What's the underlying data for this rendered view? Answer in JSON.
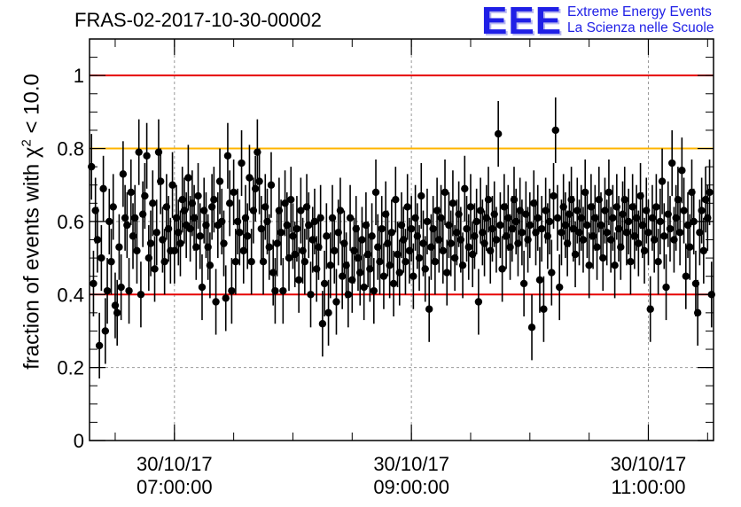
{
  "chart_data": {
    "type": "scatter",
    "title": "FRAS-02-2017-10-30-00002",
    "ylabel": "fraction of events with χ² < 10.0",
    "ylabel_parts": {
      "prefix": "fraction of events with ",
      "symbol": "χ",
      "exponent": "2",
      "suffix": " < 10.0"
    },
    "xlabel": "",
    "ylim": [
      0,
      1.1
    ],
    "xlim": [
      "30/10/17 06:17:00",
      "30/10/17 11:33:00"
    ],
    "x_unit": "date-time (30/10/17)",
    "y_ticks": [
      "0",
      "0.2",
      "0.4",
      "0.6",
      "0.8",
      "1"
    ],
    "x_ticks": [
      {
        "x": "30/10/17 07:00:00",
        "line1": "30/10/17",
        "line2": "07:00:00"
      },
      {
        "x": "30/10/17 09:00:00",
        "line1": "30/10/17",
        "line2": "09:00:00"
      },
      {
        "x": "30/10/17 11:00:00",
        "line1": "30/10/17",
        "line2": "11:00:00"
      }
    ],
    "grid": true,
    "reference_lines": [
      {
        "y": 1.0,
        "color": "#e60000"
      },
      {
        "y": 0.8,
        "color": "#ffb400"
      },
      {
        "y": 0.4,
        "color": "#e60000"
      }
    ],
    "marker_color": "#000000",
    "x": [
      "06:18",
      "06:19",
      "06:20",
      "06:21",
      "06:22",
      "06:23",
      "06:24",
      "06:25",
      "06:26",
      "06:27",
      "06:28",
      "06:29",
      "06:30",
      "06:31",
      "06:32",
      "06:33",
      "06:34",
      "06:35",
      "06:36",
      "06:37",
      "06:38",
      "06:39",
      "06:40",
      "06:41",
      "06:42",
      "06:43",
      "06:44",
      "06:45",
      "06:46",
      "06:47",
      "06:48",
      "06:49",
      "06:50",
      "06:51",
      "06:52",
      "06:53",
      "06:54",
      "06:55",
      "06:56",
      "06:57",
      "06:58",
      "06:59",
      "07:00",
      "07:01",
      "07:02",
      "07:03",
      "07:04",
      "07:05",
      "07:06",
      "07:07",
      "07:08",
      "07:09",
      "07:10",
      "07:11",
      "07:12",
      "07:13",
      "07:14",
      "07:15",
      "07:16",
      "07:17",
      "07:18",
      "07:19",
      "07:20",
      "07:21",
      "07:22",
      "07:23",
      "07:24",
      "07:25",
      "07:26",
      "07:27",
      "07:28",
      "07:29",
      "07:30",
      "07:31",
      "07:32",
      "07:33",
      "07:34",
      "07:35",
      "07:36",
      "07:37",
      "07:38",
      "07:39",
      "07:40",
      "07:41",
      "07:42",
      "07:43",
      "07:44",
      "07:45",
      "07:46",
      "07:47",
      "07:48",
      "07:49",
      "07:50",
      "07:51",
      "07:52",
      "07:53",
      "07:54",
      "07:55",
      "07:56",
      "07:57",
      "07:58",
      "07:59",
      "08:00",
      "08:01",
      "08:02",
      "08:03",
      "08:04",
      "08:05",
      "08:06",
      "08:07",
      "08:08",
      "08:09",
      "08:10",
      "08:11",
      "08:12",
      "08:13",
      "08:14",
      "08:15",
      "08:16",
      "08:17",
      "08:18",
      "08:19",
      "08:20",
      "08:21",
      "08:22",
      "08:23",
      "08:24",
      "08:25",
      "08:26",
      "08:27",
      "08:28",
      "08:29",
      "08:30",
      "08:31",
      "08:32",
      "08:33",
      "08:34",
      "08:35",
      "08:36",
      "08:37",
      "08:38",
      "08:39",
      "08:40",
      "08:41",
      "08:42",
      "08:43",
      "08:44",
      "08:45",
      "08:46",
      "08:47",
      "08:48",
      "08:49",
      "08:50",
      "08:51",
      "08:52",
      "08:53",
      "08:54",
      "08:55",
      "08:56",
      "08:57",
      "08:58",
      "08:59",
      "09:00",
      "09:01",
      "09:02",
      "09:03",
      "09:04",
      "09:05",
      "09:06",
      "09:07",
      "09:08",
      "09:09",
      "09:10",
      "09:11",
      "09:12",
      "09:13",
      "09:14",
      "09:15",
      "09:16",
      "09:17",
      "09:18",
      "09:19",
      "09:20",
      "09:21",
      "09:22",
      "09:23",
      "09:24",
      "09:25",
      "09:26",
      "09:27",
      "09:28",
      "09:29",
      "09:30",
      "09:31",
      "09:32",
      "09:33",
      "09:34",
      "09:35",
      "09:36",
      "09:37",
      "09:38",
      "09:39",
      "09:40",
      "09:41",
      "09:42",
      "09:43",
      "09:44",
      "09:45",
      "09:46",
      "09:47",
      "09:48",
      "09:49",
      "09:50",
      "09:51",
      "09:52",
      "09:53",
      "09:54",
      "09:55",
      "09:56",
      "09:57",
      "09:58",
      "09:59",
      "10:00",
      "10:01",
      "10:02",
      "10:03",
      "10:04",
      "10:05",
      "10:06",
      "10:07",
      "10:08",
      "10:09",
      "10:10",
      "10:11",
      "10:12",
      "10:13",
      "10:14",
      "10:15",
      "10:16",
      "10:17",
      "10:18",
      "10:19",
      "10:20",
      "10:21",
      "10:22",
      "10:23",
      "10:24",
      "10:25",
      "10:26",
      "10:27",
      "10:28",
      "10:29",
      "10:30",
      "10:31",
      "10:32",
      "10:33",
      "10:34",
      "10:35",
      "10:36",
      "10:37",
      "10:38",
      "10:39",
      "10:40",
      "10:41",
      "10:42",
      "10:43",
      "10:44",
      "10:45",
      "10:46",
      "10:47",
      "10:48",
      "10:49",
      "10:50",
      "10:51",
      "10:52",
      "10:53",
      "10:54",
      "10:55",
      "10:56",
      "10:57",
      "10:58",
      "10:59",
      "11:00",
      "11:01",
      "11:02",
      "11:03",
      "11:04",
      "11:05",
      "11:06",
      "11:07",
      "11:08",
      "11:09",
      "11:10",
      "11:11",
      "11:12",
      "11:13",
      "11:14",
      "11:15",
      "11:16",
      "11:17",
      "11:18",
      "11:19",
      "11:20",
      "11:21",
      "11:22",
      "11:23",
      "11:24",
      "11:25",
      "11:26",
      "11:27",
      "11:28",
      "11:29",
      "11:30",
      "11:31",
      "11:32"
    ],
    "y": [
      0.75,
      0.43,
      0.63,
      0.55,
      0.26,
      0.5,
      0.69,
      0.3,
      0.41,
      0.6,
      0.49,
      0.64,
      0.37,
      0.35,
      0.53,
      0.42,
      0.73,
      0.61,
      0.59,
      0.41,
      0.68,
      0.56,
      0.61,
      0.52,
      0.79,
      0.4,
      0.62,
      0.67,
      0.78,
      0.5,
      0.54,
      0.65,
      0.47,
      0.57,
      0.79,
      0.71,
      0.55,
      0.49,
      0.64,
      0.58,
      0.52,
      0.7,
      0.52,
      0.61,
      0.57,
      0.54,
      0.66,
      0.63,
      0.59,
      0.72,
      0.58,
      0.65,
      0.61,
      0.53,
      0.67,
      0.56,
      0.42,
      0.63,
      0.59,
      0.53,
      0.48,
      0.64,
      0.66,
      0.38,
      0.59,
      0.71,
      0.6,
      0.54,
      0.39,
      0.78,
      0.65,
      0.41,
      0.68,
      0.49,
      0.6,
      0.57,
      0.76,
      0.52,
      0.61,
      0.56,
      0.72,
      0.49,
      0.63,
      0.69,
      0.79,
      0.71,
      0.58,
      0.49,
      0.64,
      0.6,
      0.53,
      0.7,
      0.46,
      0.41,
      0.54,
      0.63,
      0.57,
      0.41,
      0.65,
      0.59,
      0.5,
      0.66,
      0.56,
      0.51,
      0.58,
      0.44,
      0.63,
      0.52,
      0.49,
      0.64,
      0.59,
      0.4,
      0.55,
      0.6,
      0.47,
      0.53,
      0.61,
      0.32,
      0.43,
      0.56,
      0.35,
      0.48,
      0.61,
      0.52,
      0.38,
      0.57,
      0.63,
      0.45,
      0.54,
      0.48,
      0.4,
      0.61,
      0.44,
      0.52,
      0.58,
      0.5,
      0.46,
      0.55,
      0.42,
      0.59,
      0.51,
      0.47,
      0.56,
      0.41,
      0.68,
      0.53,
      0.49,
      0.58,
      0.45,
      0.62,
      0.54,
      0.48,
      0.57,
      0.43,
      0.66,
      0.51,
      0.46,
      0.59,
      0.55,
      0.49,
      0.64,
      0.52,
      0.58,
      0.45,
      0.61,
      0.56,
      0.5,
      0.67,
      0.54,
      0.47,
      0.6,
      0.36,
      0.53,
      0.58,
      0.49,
      0.63,
      0.55,
      0.61,
      0.52,
      0.68,
      0.46,
      0.59,
      0.54,
      0.65,
      0.5,
      0.57,
      0.62,
      0.55,
      0.48,
      0.69,
      0.58,
      0.53,
      0.64,
      0.51,
      0.56,
      0.6,
      0.38,
      0.63,
      0.57,
      0.54,
      0.61,
      0.66,
      0.52,
      0.58,
      0.62,
      0.55,
      0.84,
      0.59,
      0.47,
      0.64,
      0.56,
      0.61,
      0.53,
      0.58,
      0.66,
      0.6,
      0.54,
      0.63,
      0.57,
      0.43,
      0.62,
      0.55,
      0.59,
      0.31,
      0.65,
      0.57,
      0.61,
      0.44,
      0.58,
      0.36,
      0.63,
      0.56,
      0.6,
      0.46,
      0.67,
      0.85,
      0.61,
      0.42,
      0.57,
      0.64,
      0.59,
      0.54,
      0.62,
      0.66,
      0.58,
      0.51,
      0.63,
      0.57,
      0.61,
      0.55,
      0.68,
      0.59,
      0.48,
      0.64,
      0.56,
      0.61,
      0.53,
      0.66,
      0.59,
      0.5,
      0.63,
      0.57,
      0.68,
      0.55,
      0.61,
      0.48,
      0.64,
      0.58,
      0.53,
      0.62,
      0.66,
      0.57,
      0.6,
      0.49,
      0.64,
      0.56,
      0.61,
      0.54,
      0.67,
      0.59,
      0.52,
      0.63,
      0.57,
      0.36,
      0.61,
      0.55,
      0.64,
      0.49,
      0.6,
      0.71,
      0.56,
      0.42,
      0.62,
      0.58,
      0.76,
      0.55,
      0.61,
      0.66,
      0.57,
      0.74,
      0.63,
      0.45,
      0.59,
      0.53,
      0.68,
      0.6,
      0.43,
      0.35,
      0.57,
      0.63,
      0.52,
      0.66,
      0.61,
      0.68,
      0.4
    ]
  },
  "logo": {
    "letters": "EEE",
    "line1": "Extreme Energy Events",
    "line2": "La Scienza nelle Scuole",
    "color": "#1f1fe6"
  }
}
